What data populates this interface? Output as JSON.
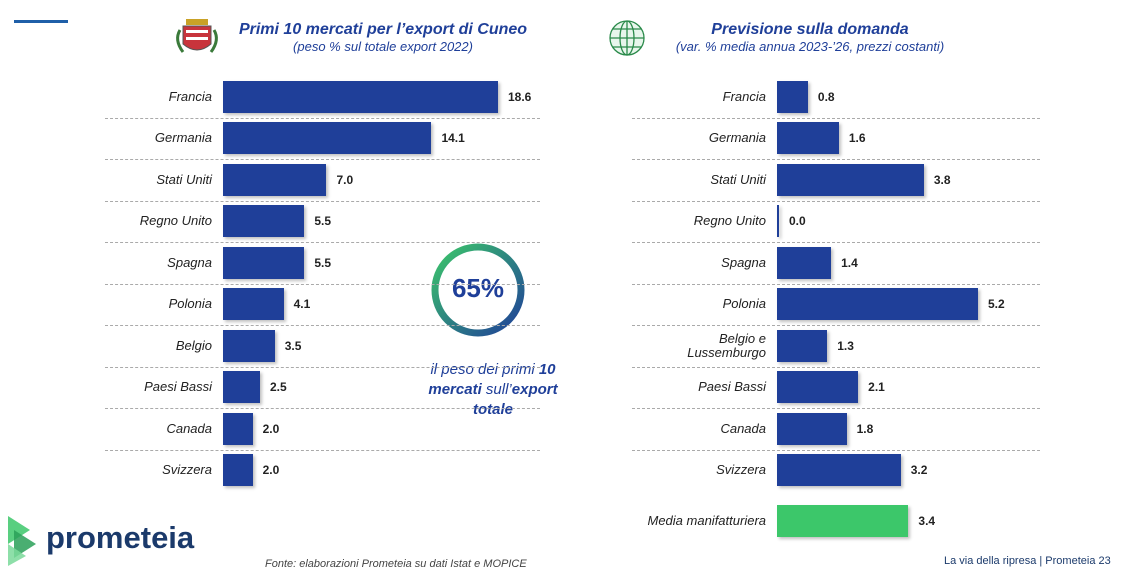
{
  "chart_data": [
    {
      "type": "bar",
      "orientation": "horizontal",
      "title": "Primi 10 mercati per l’export di Cuneo",
      "subtitle": "(peso % sul totale export 2022)",
      "categories": [
        "Francia",
        "Germania",
        "Stati Uniti",
        "Regno Unito",
        "Spagna",
        "Polonia",
        "Belgio",
        "Paesi Bassi",
        "Canada",
        "Svizzera"
      ],
      "values": [
        18.6,
        14.1,
        7.0,
        5.5,
        5.5,
        4.1,
        3.5,
        2.5,
        2.0,
        2.0
      ],
      "value_labels": [
        "18.6",
        "14.1",
        "7.0",
        "5.5",
        "5.5",
        "4.1",
        "3.5",
        "2.5",
        "2.0",
        "2.0"
      ],
      "color": "#1f3f99"
    },
    {
      "type": "bar",
      "orientation": "horizontal",
      "title": "Previsione sulla domanda",
      "subtitle": "(var. % media annua 2023-’26, prezzi costanti)",
      "categories": [
        "Francia",
        "Germania",
        "Stati Uniti",
        "Regno Unito",
        "Spagna",
        "Polonia",
        "Belgio e\nLussemburgo",
        "Paesi Bassi",
        "Canada",
        "Svizzera",
        "Media manifatturiera"
      ],
      "values": [
        0.8,
        1.6,
        3.8,
        0.0,
        1.4,
        5.2,
        1.3,
        2.1,
        1.8,
        3.2,
        3.4
      ],
      "value_labels": [
        "0.8",
        "1.6",
        "3.8",
        "0.0",
        "1.4",
        "5.2",
        "1.3",
        "2.1",
        "1.8",
        "3.2",
        "3.4"
      ],
      "colors": [
        "#1f3f99",
        "#1f3f99",
        "#1f3f99",
        "#1f3f99",
        "#1f3f99",
        "#1f3f99",
        "#1f3f99",
        "#1f3f99",
        "#1f3f99",
        "#1f3f99",
        "#3cc76a"
      ]
    }
  ],
  "callout": {
    "label": "65%",
    "lines": [
      [
        {
          "text": "il peso dei primi ",
          "bold": false
        },
        {
          "text": "10",
          "bold": true
        }
      ],
      [
        {
          "text": "mercati",
          "bold": true
        },
        {
          "text": " sull’",
          "bold": false
        },
        {
          "text": "export",
          "bold": true
        }
      ],
      [
        {
          "text": "totale",
          "bold": true
        }
      ]
    ]
  },
  "logo": "prometeia",
  "source": "Fonte: elaborazioni Prometeia su dati Istat e MOPICE",
  "footer": "La via della ripresa | Prometeia 23"
}
